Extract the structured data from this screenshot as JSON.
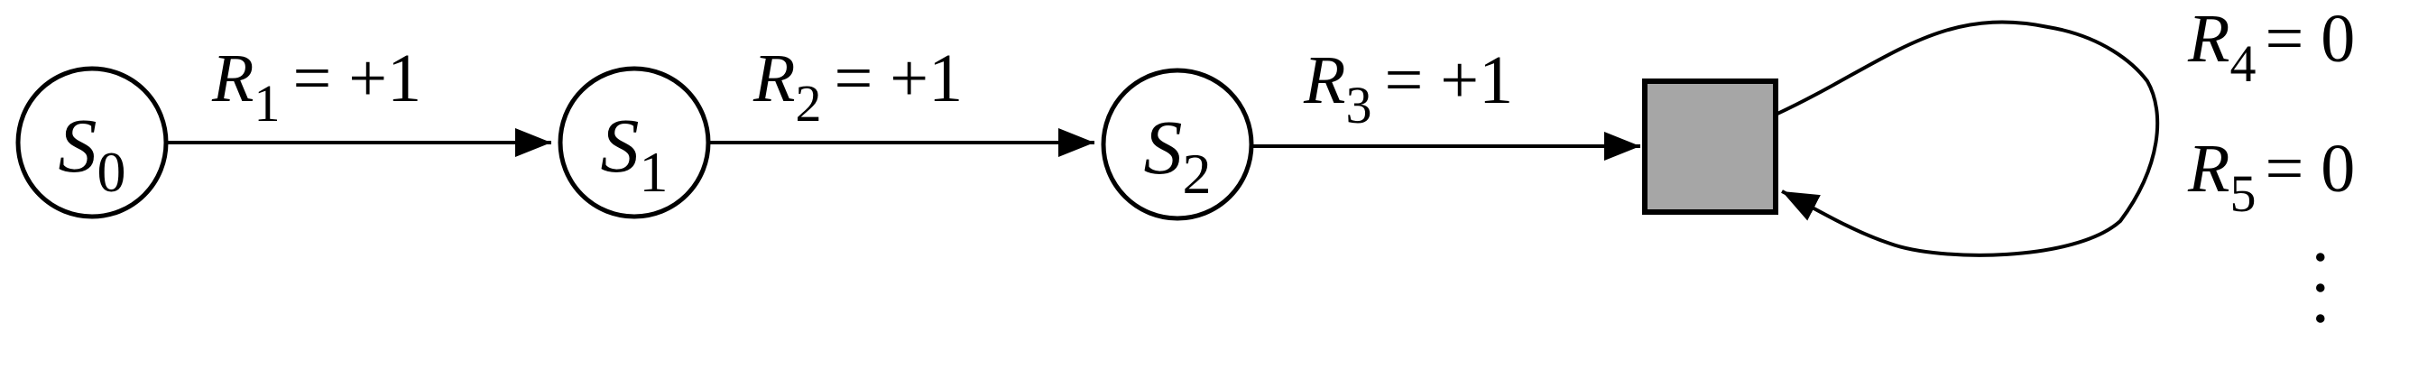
{
  "states": [
    {
      "id": "s0",
      "symbol": "S",
      "subscript": "0"
    },
    {
      "id": "s1",
      "symbol": "S",
      "subscript": "1"
    },
    {
      "id": "s2",
      "symbol": "S",
      "subscript": "2"
    }
  ],
  "edges": [
    {
      "from": "s0",
      "to": "s1",
      "reward_symbol": "R",
      "reward_subscript": "1",
      "reward_value": "= +1"
    },
    {
      "from": "s1",
      "to": "s2",
      "reward_symbol": "R",
      "reward_subscript": "2",
      "reward_value": "= +1"
    },
    {
      "from": "s2",
      "to": "terminal",
      "reward_symbol": "R",
      "reward_subscript": "3",
      "reward_value": "= +1"
    }
  ],
  "terminal": {
    "fill_color": "#a6a6a6"
  },
  "self_loop_rewards": [
    {
      "symbol": "R",
      "subscript": "4",
      "value": "= 0"
    },
    {
      "symbol": "R",
      "subscript": "5",
      "value": "= 0"
    }
  ],
  "continuation": "..."
}
